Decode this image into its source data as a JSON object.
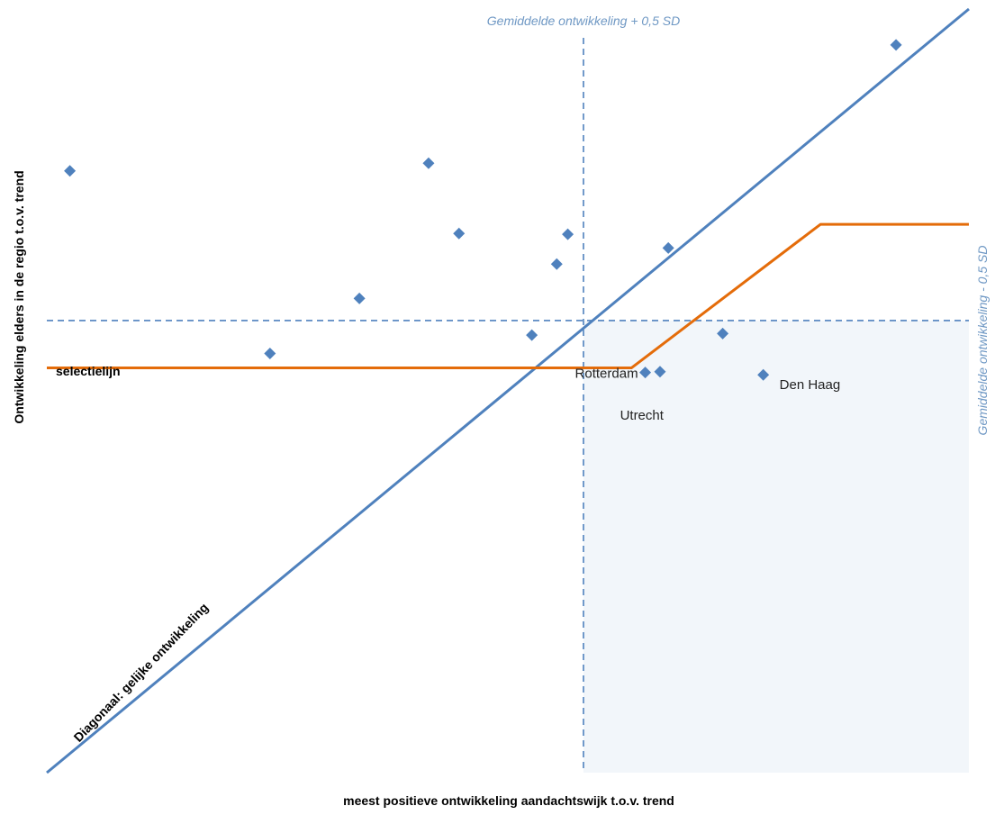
{
  "colors": {
    "diagonal": "#4f81bd",
    "reference_lines": "#4f81bd",
    "selection_line": "#e46c0a",
    "points": "#4f81bd",
    "shaded_quadrant": "#f2f6fa",
    "reference_text": "#6f98c4"
  },
  "chart_data": {
    "type": "scatter",
    "xlabel": "meest positieve  ontwikkeling aandachtswijk t.o.v. trend",
    "ylabel": "Ontwikkeling elders in de regio t.o.v. trend",
    "xlim": [
      0,
      100
    ],
    "ylim": [
      0,
      100
    ],
    "grid": false,
    "legend": "none",
    "series": [
      {
        "marker": "diamond",
        "x": [
          2.5,
          24.2,
          33.9,
          41.4,
          44.7,
          52.6,
          55.3,
          56.5,
          64.9,
          66.5,
          67.4,
          73.3,
          77.7,
          92.1
        ],
        "y": [
          78.8,
          54.9,
          62.1,
          79.8,
          70.6,
          57.3,
          66.6,
          70.5,
          52.4,
          52.5,
          68.7,
          57.5,
          52.1,
          95.3
        ]
      }
    ],
    "point_labels": [
      {
        "text": "Rotterdam",
        "x": 64.9,
        "y": 52.4
      },
      {
        "text": "Utrecht",
        "x": 64.9,
        "y": 49.2
      },
      {
        "text": "Den Haag",
        "x": 77.7,
        "y": 52.1
      }
    ],
    "reference_lines": [
      {
        "orientation": "vertical",
        "x": 58.2,
        "label": "Gemiddelde ontwikkeling + 0,5 SD"
      },
      {
        "orientation": "horizontal",
        "y": 59.2,
        "label": "Gemiddelde ontwikkeling - 0,5 SD"
      }
    ],
    "diagonal": {
      "label": "Diagonaal: gelijke ontwikkeling",
      "x": [
        0,
        100
      ],
      "y": [
        0,
        100
      ]
    },
    "selection_line": {
      "label": "selectielijn",
      "x": [
        0,
        63.4,
        83.9,
        100
      ],
      "y": [
        53.0,
        53.0,
        71.8,
        71.8
      ]
    }
  }
}
